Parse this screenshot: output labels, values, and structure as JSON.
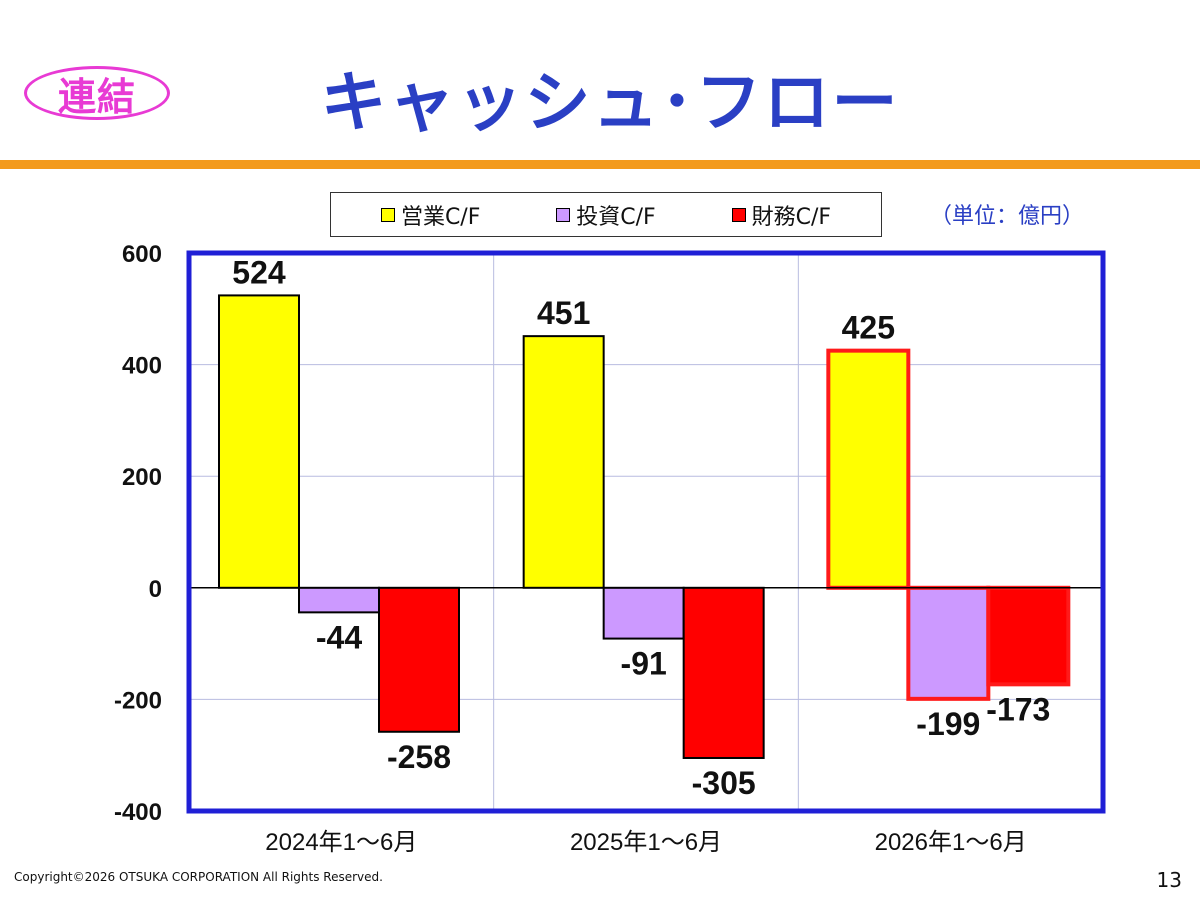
{
  "header": {
    "badge": "連結",
    "title": "キャッシュ･フロー"
  },
  "unit_label": "（単位：億円）",
  "footer": {
    "copyright": "Copyright©2026 OTSUKA CORPORATION All Rights Reserved.",
    "page_number": "13"
  },
  "colors": {
    "accent_rule": "#f39a1c",
    "title": "#2a3fc4",
    "badge": "#e83ad4",
    "plot_border": "#1f1fd6",
    "highlight_outline": "#ff1a1a"
  },
  "chart_data": {
    "type": "bar",
    "categories": [
      "2024年1～6月",
      "2025年1～6月",
      "2026年1～6月"
    ],
    "series": [
      {
        "name": "営業C/F",
        "color": "#ffff00",
        "values": [
          524,
          451,
          425
        ]
      },
      {
        "name": "投資C/F",
        "color": "#cc99ff",
        "values": [
          -44,
          -91,
          -199
        ]
      },
      {
        "name": "財務C/F",
        "color": "#ff0000",
        "values": [
          -258,
          -305,
          -173
        ]
      }
    ],
    "title": "",
    "xlabel": "",
    "ylabel": "",
    "ylim": [
      -400,
      600
    ],
    "yticks": [
      600,
      400,
      200,
      0,
      -200,
      -400
    ],
    "grid": true,
    "legend": "top",
    "highlighted_category": "2026年1～6月"
  }
}
